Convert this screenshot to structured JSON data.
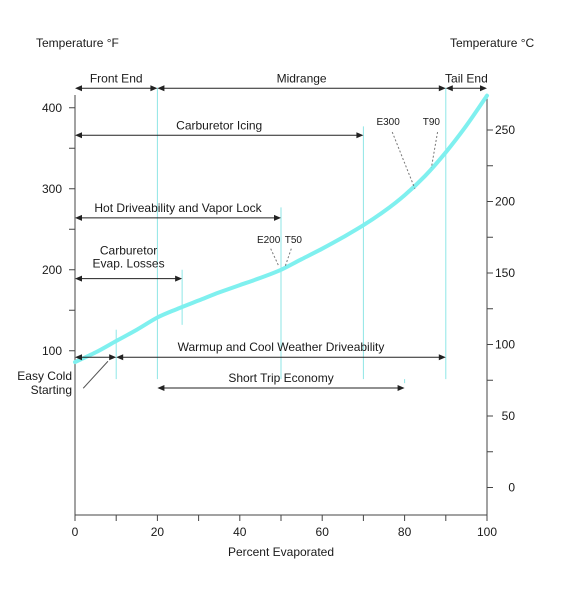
{
  "chart_data": {
    "type": "line",
    "xlabel": "Percent Evaporated",
    "ylabel_left": "Temperature °F",
    "ylabel_right": "Temperature °C",
    "xlim": [
      0,
      100
    ],
    "ylim_f": [
      65,
      425
    ],
    "ylim_c": [
      -20,
      280
    ],
    "xticks": [
      "0",
      "20",
      "40",
      "60",
      "80",
      "100"
    ],
    "yticks_f": [
      "100",
      "200",
      "300",
      "400"
    ],
    "yticks_c": [
      "0",
      "50",
      "100",
      "150",
      "200",
      "250"
    ],
    "grid": false,
    "series": [
      {
        "x": [
          0,
          5,
          10,
          15,
          20,
          25,
          30,
          35,
          40,
          45,
          50,
          55,
          60,
          65,
          70,
          75,
          80,
          85,
          90,
          95,
          100
        ],
        "values": [
          86,
          98,
          112,
          126,
          141,
          152,
          162,
          172,
          181,
          190,
          200,
          213,
          226,
          240,
          255,
          272,
          292,
          316,
          345,
          378,
          415
        ]
      }
    ],
    "ranges": [
      {
        "label": "Front End",
        "x1": 0,
        "x2": 20,
        "y_f": 424
      },
      {
        "label": "Midrange",
        "x1": 20,
        "x2": 90,
        "y_f": 424
      },
      {
        "label": "Tail End",
        "x1": 90,
        "x2": 100,
        "y_f": 424
      },
      {
        "label": "Carburetor Icing",
        "x1": 0,
        "x2": 70,
        "y_f": 366
      },
      {
        "label": "Hot Driveability and Vapor Lock",
        "x1": 0,
        "x2": 50,
        "y_f": 264
      },
      {
        "label": "Carburetor\nEvap. Losses",
        "x1": 0,
        "x2": 26,
        "y_f": 189
      },
      {
        "label": "Warmup and Cool Weather Driveability",
        "x1": 10,
        "x2": 90,
        "y_f": 92
      },
      {
        "label": "Short Trip Economy",
        "x1": 20,
        "x2": 80,
        "y_f": 54
      },
      {
        "label": "Easy Cold\nStarting",
        "x1": 0,
        "x2": 10,
        "y_f": 92
      }
    ],
    "markers": [
      {
        "x": 10,
        "y1_f": 126,
        "y2_f": 65
      },
      {
        "x": 20,
        "y1_f": 425,
        "y2_f": 65
      },
      {
        "x": 26,
        "y1_f": 200,
        "y2_f": 132
      },
      {
        "x": 50,
        "y1_f": 277,
        "y2_f": 65
      },
      {
        "x": 70,
        "y1_f": 377,
        "y2_f": 65
      },
      {
        "x": 80,
        "y1_f": 60,
        "y2_f": 65
      },
      {
        "x": 90,
        "y1_f": 425,
        "y2_f": 65
      }
    ],
    "annotations": [
      {
        "text": "E200",
        "x": 47,
        "y_f": 233
      },
      {
        "text": "T50",
        "x": 53,
        "y_f": 233
      },
      {
        "text": "E300",
        "x": 76,
        "y_f": 379
      },
      {
        "text": "T90",
        "x": 86.5,
        "y_f": 379
      }
    ]
  }
}
